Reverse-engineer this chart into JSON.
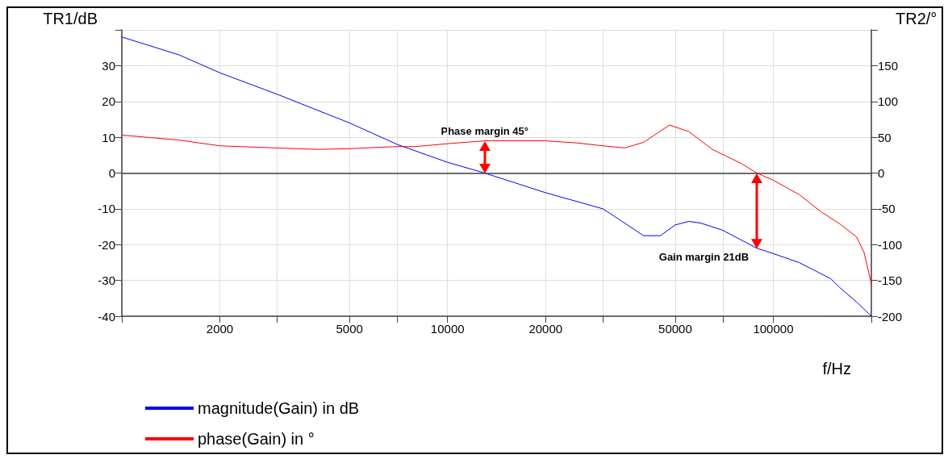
{
  "chart_data": {
    "type": "line",
    "xlabel": "f/Hz",
    "ylabel": "TR1/dB",
    "y2label": "TR2/°",
    "log": "x",
    "grid": true,
    "legend": "bottom left",
    "line_style": "solid",
    "marker": "none",
    "xlim": [
      1000,
      200000
    ],
    "xticks": [
      {
        "value": 1000,
        "label": null
      },
      2000,
      {
        "value": 3000,
        "label": null
      },
      5000,
      {
        "value": 7000,
        "label": null
      },
      10000,
      20000,
      {
        "value": 30000,
        "label": null
      },
      50000,
      {
        "value": 70000,
        "label": null
      },
      100000,
      {
        "value": 200000,
        "label": null
      }
    ],
    "ylim": [
      -40,
      40
    ],
    "yticks": [
      -40,
      -30,
      -20,
      -10,
      0,
      10,
      20,
      30,
      {
        "value": 40,
        "label": null
      }
    ],
    "y2lim": [
      -200,
      200
    ],
    "y2ticks": [
      -200,
      -150,
      -100,
      -50,
      0,
      50,
      100,
      150,
      {
        "value": 200,
        "label": null
      }
    ],
    "ref_lines": [
      {
        "axis": "y",
        "value": 0,
        "color": "#404040"
      }
    ],
    "annotations": [
      {
        "text": "Phase margin 45°",
        "x": 13000,
        "y": 9
      },
      {
        "text": "Gain margin 21dB",
        "x": 89000,
        "y": -21
      }
    ],
    "series": [
      {
        "name": "magnitude(Gain) in dB",
        "color": "#0000ff",
        "x": [
          1000,
          1500,
          2000,
          3000,
          5000,
          7000,
          10000,
          13000,
          20000,
          30000,
          40000,
          45000,
          50000,
          55000,
          60000,
          70000,
          89000,
          100000,
          120000,
          150000,
          160000,
          180000,
          200000
        ],
        "values": [
          38,
          33,
          28,
          22,
          14,
          8,
          3,
          0,
          -5.5,
          -10,
          -17.5,
          -17.5,
          -14.5,
          -13.5,
          -14,
          -16,
          -21,
          -22.5,
          -25,
          -29.5,
          -32,
          -36,
          -40
        ]
      },
      {
        "name": "phase(Gain) in °",
        "color": "#ff0000",
        "axis": "y2",
        "x": [
          1000,
          1500,
          2000,
          3000,
          4000,
          5000,
          7000,
          8000,
          10000,
          13000,
          20000,
          25000,
          30000,
          35000,
          40000,
          48000,
          55000,
          65000,
          80000,
          89000,
          100000,
          120000,
          140000,
          160000,
          180000,
          190000,
          200000
        ],
        "values": [
          53,
          46,
          38,
          35,
          33,
          34,
          37,
          37,
          41,
          45,
          45,
          42,
          38,
          35,
          43,
          67,
          58,
          33,
          13,
          0,
          -10,
          -30,
          -54,
          -71,
          -89,
          -111,
          -155
        ]
      }
    ]
  }
}
